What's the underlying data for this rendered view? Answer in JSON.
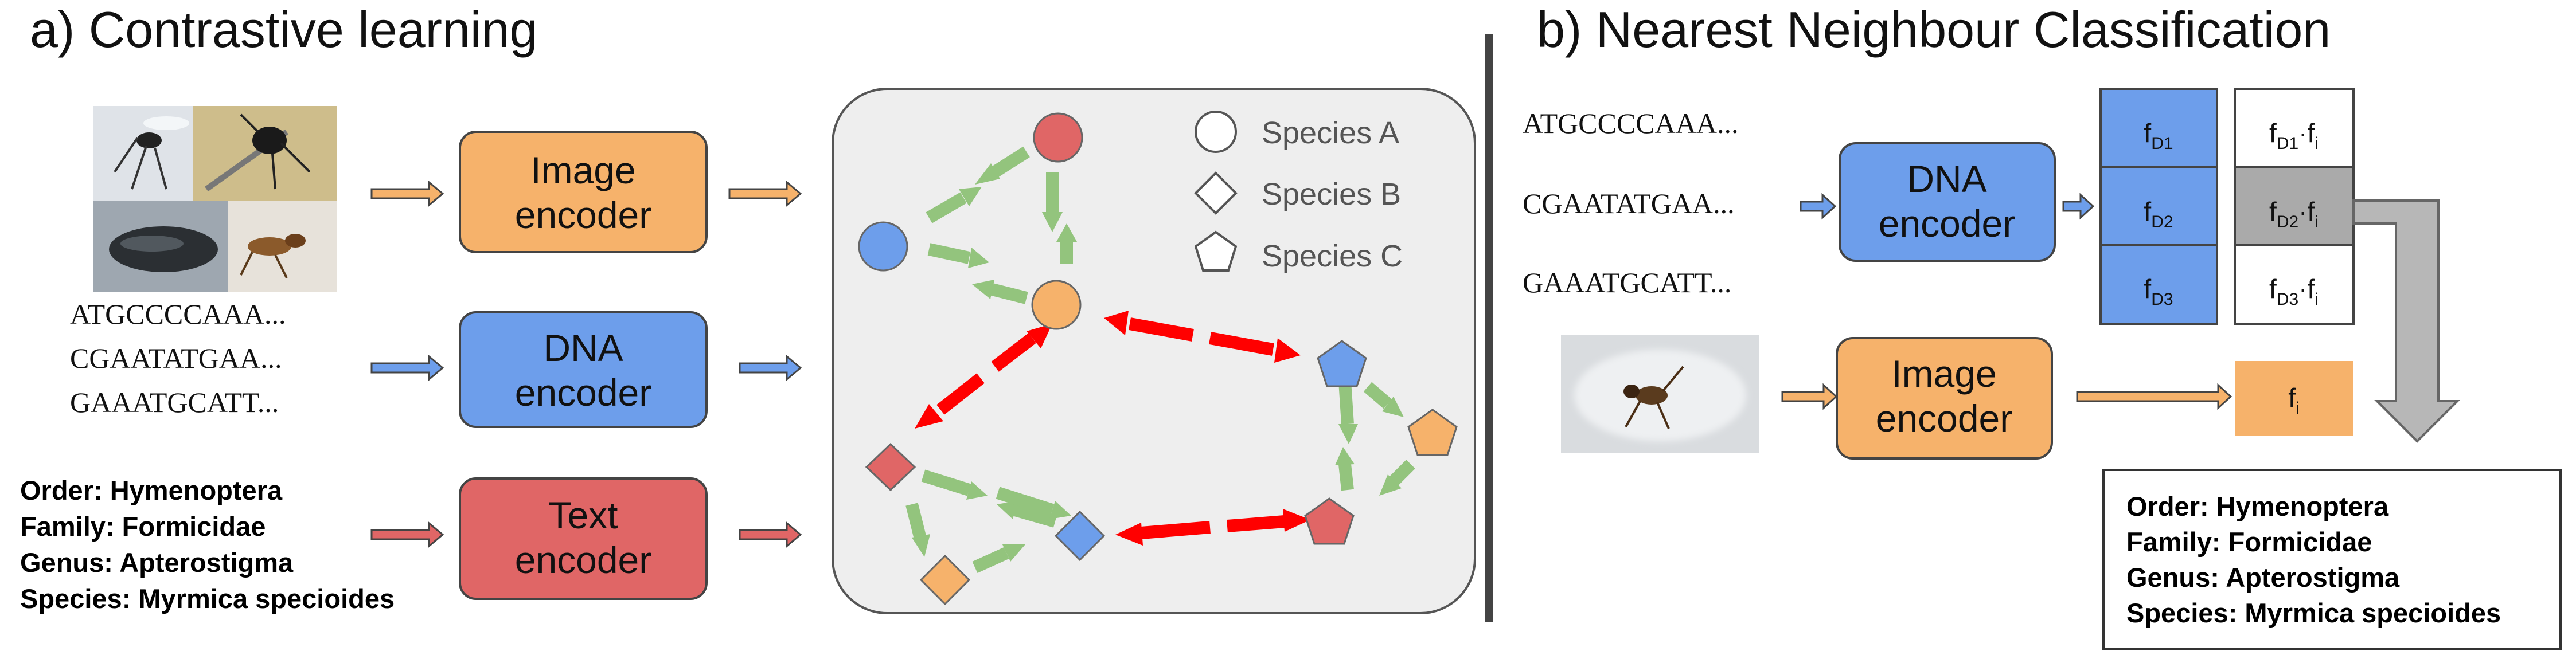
{
  "panel_a": {
    "title": "a) Contrastive learning",
    "image_encoder_label": [
      "Image",
      "encoder"
    ],
    "dna_encoder_label": [
      "DNA",
      "encoder"
    ],
    "text_encoder_label": [
      "Text",
      "encoder"
    ],
    "dna_sequences": [
      "ATGCCCCAAA...",
      "CGAATATGAA...",
      "GAAATGCATT..."
    ],
    "taxonomy": [
      {
        "rank": "Order",
        "name": "Hymenoptera"
      },
      {
        "rank": "Family",
        "name": "Formicidae"
      },
      {
        "rank": "Genus",
        "name": "Apterostigma"
      },
      {
        "rank": "Species",
        "name": "Myrmica specioides"
      }
    ],
    "legend": [
      {
        "shape": "circle",
        "label": "Species A"
      },
      {
        "shape": "diamond",
        "label": "Species B"
      },
      {
        "shape": "pentagon",
        "label": "Species C"
      }
    ]
  },
  "panel_b": {
    "title": "b) Nearest Neighbour Classification",
    "dna_sequences": [
      "ATGCCCCAAA...",
      "CGAATATGAA...",
      "GAAATGCATT..."
    ],
    "dna_encoder_label": [
      "DNA",
      "encoder"
    ],
    "image_encoder_label": [
      "Image",
      "encoder"
    ],
    "dna_features": [
      {
        "base": "f",
        "sub": "D1"
      },
      {
        "base": "f",
        "sub": "D2"
      },
      {
        "base": "f",
        "sub": "D3"
      }
    ],
    "similarities": [
      {
        "sub1": "D1",
        "sub2": "i",
        "highlighted": false
      },
      {
        "sub1": "D2",
        "sub2": "i",
        "highlighted": true
      },
      {
        "sub1": "D3",
        "sub2": "i",
        "highlighted": false
      }
    ],
    "image_feature": {
      "base": "f",
      "sub": "i"
    },
    "taxonomy": [
      {
        "rank": "Order",
        "name": "Hymenoptera"
      },
      {
        "rank": "Family",
        "name": "Formicidae"
      },
      {
        "rank": "Genus",
        "name": "Apterostigma"
      },
      {
        "rank": "Species",
        "name": "Myrmica specioides"
      }
    ]
  },
  "colors": {
    "image": "#f6b26b",
    "dna": "#6d9eeb",
    "text": "#e06666",
    "green_arrow": "#93c47d",
    "red_arrow": "#ff0000",
    "highlight_cell": "#aaaaaa",
    "gray_arrow": "#b7b7b7",
    "divider": "#444444"
  }
}
